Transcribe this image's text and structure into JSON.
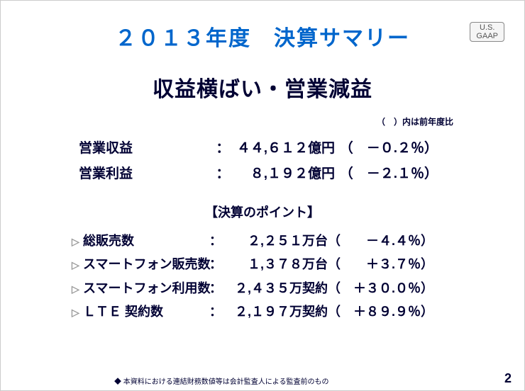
{
  "title": "２０１３年度　決算サマリー",
  "gaap_line1": "U.S.",
  "gaap_line2": "GAAP",
  "headline": "収益横ばい・営業減益",
  "note": "（　）内は前年度比",
  "financials": [
    {
      "label": "営業収益",
      "colon": "：",
      "value": "４４,６１２億円",
      "paren": "（　－０.２％）"
    },
    {
      "label": "営業利益",
      "colon": "：",
      "value": "８,１９２億円",
      "paren": "（　－２.１％）"
    }
  ],
  "subheader": "【決算のポイント】",
  "points": [
    {
      "bullet": "▷",
      "label": "総販売数",
      "colon": "：",
      "value": "２,２５１万台",
      "paren": "（　　－４.４％）"
    },
    {
      "bullet": "▷",
      "label": "スマートフォン販売数",
      "colon": "：",
      "value": "１,３７８万台",
      "paren": "（　　＋３.７％）"
    },
    {
      "bullet": "▷",
      "label": "スマートフォン利用数",
      "colon": "：",
      "value": "２,４３５万契約",
      "paren": "（　＋３０.０％）"
    },
    {
      "bullet": "▷",
      "label": "ＬＴＥ 契約数",
      "colon": "：",
      "value": "２,１９７万契約",
      "paren": "（　＋８９.９％）"
    }
  ],
  "footnote": "◆ 本資料における連結財務数値等は会計監査人による監査前のもの",
  "pagenum": "2"
}
